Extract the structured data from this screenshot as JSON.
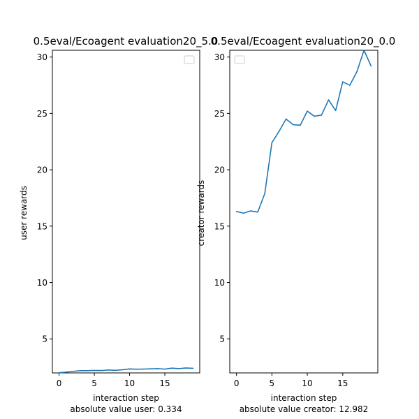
{
  "chart_data": [
    {
      "type": "line",
      "title": "0.5eval/Ecoagent evaluation20_5.0",
      "xlabel": "interaction step",
      "ylabel": "user rewards",
      "caption": "absolute value user: 0.334",
      "xlim": [
        -0.95,
        19.95
      ],
      "ylim": [
        1.98,
        30.6
      ],
      "xticks": [
        0,
        5,
        10,
        15
      ],
      "yticks": [
        5,
        10,
        15,
        20,
        25,
        30
      ],
      "legend": "top-right, empty",
      "grid": false,
      "line_color": "#1f77b4",
      "x": [
        0,
        1,
        2,
        3,
        4,
        5,
        6,
        7,
        8,
        9,
        10,
        11,
        12,
        13,
        14,
        15,
        16,
        17,
        18,
        19
      ],
      "y": [
        2.0,
        2.05,
        2.12,
        2.18,
        2.18,
        2.2,
        2.19,
        2.24,
        2.21,
        2.26,
        2.33,
        2.31,
        2.32,
        2.34,
        2.36,
        2.32,
        2.4,
        2.36,
        2.42,
        2.39
      ]
    },
    {
      "type": "line",
      "title": "0.5eval/Ecoagent evaluation20_0.0",
      "xlabel": "interaction step",
      "ylabel": "creator rewards",
      "caption": "absolute value creator: 12.982",
      "xlim": [
        -0.95,
        19.95
      ],
      "ylim": [
        1.98,
        30.6
      ],
      "xticks": [
        0,
        5,
        10,
        15
      ],
      "yticks": [
        5,
        10,
        15,
        20,
        25,
        30
      ],
      "legend": "top-left, empty",
      "grid": false,
      "line_color": "#1f77b4",
      "x": [
        0,
        1,
        2,
        3,
        4,
        5,
        6,
        7,
        8,
        9,
        10,
        11,
        12,
        13,
        14,
        15,
        16,
        17,
        18,
        19
      ],
      "y": [
        16.3,
        16.15,
        16.35,
        16.25,
        17.9,
        22.4,
        23.4,
        24.5,
        24.0,
        23.95,
        25.2,
        24.75,
        24.85,
        26.2,
        25.25,
        27.8,
        27.5,
        28.7,
        30.6,
        29.2
      ]
    }
  ]
}
